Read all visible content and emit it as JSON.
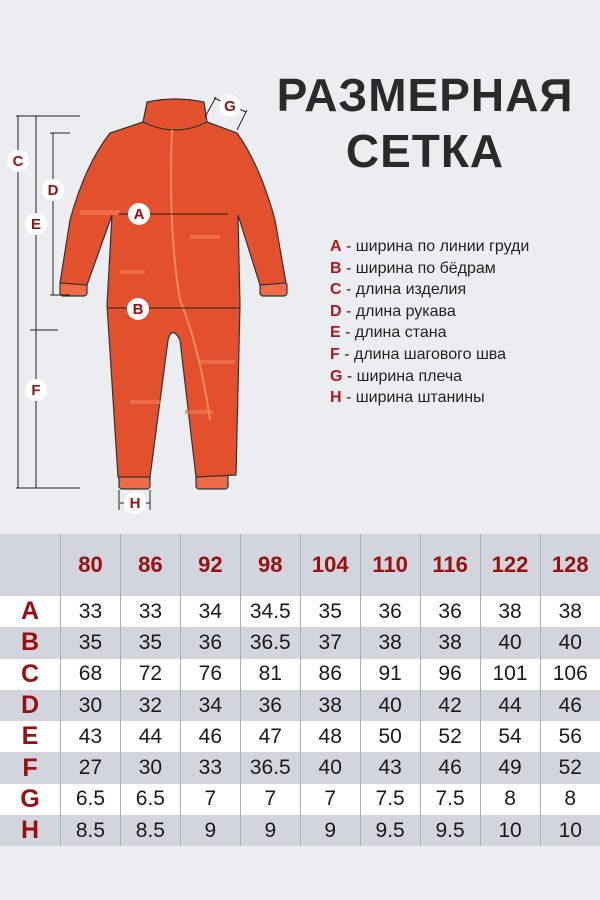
{
  "title": {
    "line1": "РАЗМЕРНАЯ",
    "line2": "СЕТКА"
  },
  "colors": {
    "accent": "#9a0f0f",
    "garment": "#e2502d",
    "background": "#ebedf0",
    "row_alt": "#d2d5dd"
  },
  "diagram_labels": [
    "A",
    "B",
    "C",
    "D",
    "E",
    "F",
    "G",
    "H"
  ],
  "legend": [
    {
      "key": "A",
      "text": "- ширина по линии груди"
    },
    {
      "key": "B",
      "text": "- ширина по бёдрам"
    },
    {
      "key": "C",
      "text": "- длина изделия"
    },
    {
      "key": "D",
      "text": "- длина рукава"
    },
    {
      "key": "E",
      "text": "- длина стана"
    },
    {
      "key": "F",
      "text": "- длина шагового шва"
    },
    {
      "key": "G",
      "text": "- ширина плеча"
    },
    {
      "key": "H",
      "text": "- ширина штанины"
    }
  ],
  "table": {
    "sizes": [
      "80",
      "86",
      "92",
      "98",
      "104",
      "110",
      "116",
      "122",
      "128"
    ],
    "rows": [
      {
        "key": "A",
        "values": [
          "33",
          "33",
          "34",
          "34.5",
          "35",
          "36",
          "36",
          "38",
          "38"
        ]
      },
      {
        "key": "B",
        "values": [
          "35",
          "35",
          "36",
          "36.5",
          "37",
          "38",
          "38",
          "40",
          "40"
        ]
      },
      {
        "key": "C",
        "values": [
          "68",
          "72",
          "76",
          "81",
          "86",
          "91",
          "96",
          "101",
          "106"
        ]
      },
      {
        "key": "D",
        "values": [
          "30",
          "32",
          "34",
          "36",
          "38",
          "40",
          "42",
          "44",
          "46"
        ]
      },
      {
        "key": "E",
        "values": [
          "43",
          "44",
          "46",
          "47",
          "48",
          "50",
          "52",
          "54",
          "56"
        ]
      },
      {
        "key": "F",
        "values": [
          "27",
          "30",
          "33",
          "36.5",
          "40",
          "43",
          "46",
          "49",
          "52"
        ]
      },
      {
        "key": "G",
        "values": [
          "6.5",
          "6.5",
          "7",
          "7",
          "7",
          "7.5",
          "7.5",
          "8",
          "8"
        ]
      },
      {
        "key": "H",
        "values": [
          "8.5",
          "8.5",
          "9",
          "9",
          "9",
          "9.5",
          "9.5",
          "10",
          "10"
        ]
      }
    ]
  }
}
